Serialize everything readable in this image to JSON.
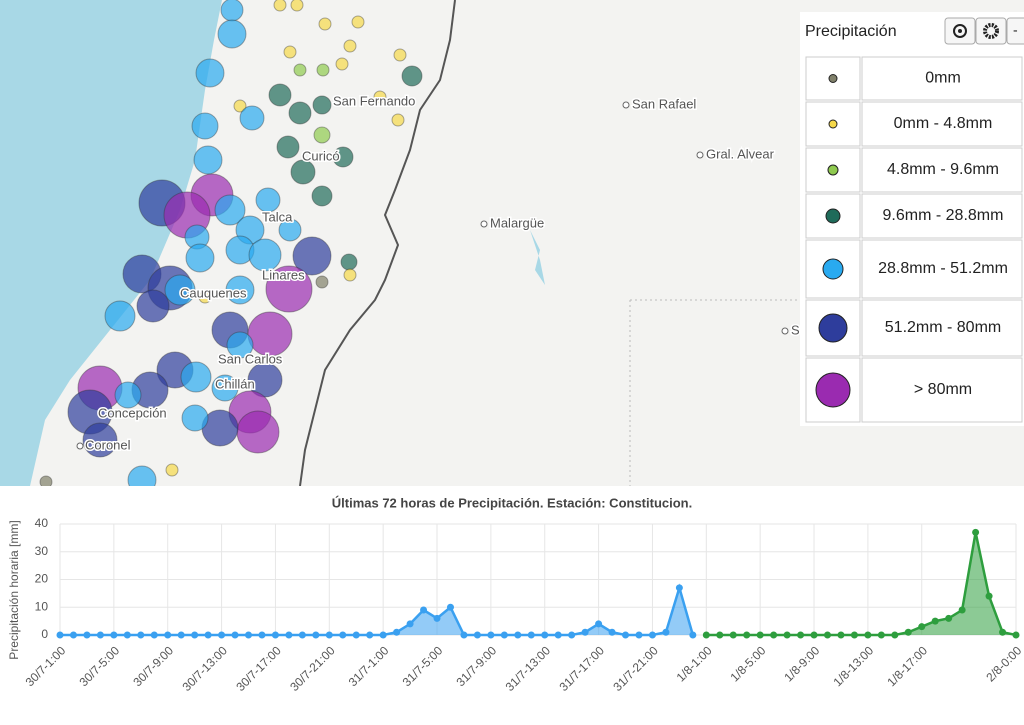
{
  "map": {
    "places": [
      "San Fernando",
      "Curicó",
      "Talca",
      "Linares",
      "Cauquenes",
      "San Carlos",
      "Chillán",
      "Concepción",
      "Coronel",
      "San Rafael",
      "Gral. Alvear",
      "Malargüe",
      "S"
    ],
    "legend": {
      "title": "Precipitación",
      "reset_button": "-",
      "items": [
        {
          "label": "0mm",
          "color": "#80806a"
        },
        {
          "label": "0mm - 4.8mm",
          "color": "#f5d84a"
        },
        {
          "label": "4.8mm - 9.6mm",
          "color": "#8fca4f"
        },
        {
          "label": "9.6mm - 28.8mm",
          "color": "#1f6b5a"
        },
        {
          "label": "28.8mm - 51.2mm",
          "color": "#29aaf0"
        },
        {
          "label": "51.2mm - 80mm",
          "color": "#2e3d9c"
        },
        {
          "label": "> 80mm",
          "color": "#9a2bb0"
        }
      ]
    }
  },
  "chart_data": {
    "type": "line",
    "title": "Últimas 72 horas de Precipitación. Estación: Constitucion.",
    "y_label": "Precipitación horaria [mm]",
    "categories": [
      "30/7-1:00",
      null,
      null,
      null,
      "30/7-5:00",
      null,
      null,
      null,
      "30/7-9:00",
      null,
      null,
      null,
      "30/7-13:00",
      null,
      null,
      null,
      "30/7-17:00",
      null,
      null,
      null,
      "30/7-21:00",
      null,
      null,
      null,
      "31/7-1:00",
      null,
      null,
      null,
      "31/7-5:00",
      null,
      null,
      null,
      "31/7-9:00",
      null,
      null,
      null,
      "31/7-13:00",
      null,
      null,
      null,
      "31/7-17:00",
      null,
      null,
      null,
      "31/7-21:00",
      null,
      null,
      null,
      "1/8-1:00",
      null,
      null,
      null,
      "1/8-5:00",
      null,
      null,
      null,
      "1/8-9:00",
      null,
      null,
      null,
      "1/8-13:00",
      null,
      null,
      null,
      "1/8-17:00",
      null,
      null,
      null,
      null,
      null,
      null,
      "2/8-0:00"
    ],
    "series": [
      {
        "color": "#3aa0f0",
        "values": [
          0,
          0,
          0,
          0,
          0,
          0,
          0,
          0,
          0,
          0,
          0,
          0,
          0,
          0,
          0,
          0,
          0,
          0,
          0,
          0,
          0,
          0,
          0,
          0,
          0,
          1,
          4,
          9,
          6,
          10,
          0,
          0,
          0,
          0,
          0,
          0,
          0,
          0,
          0,
          1,
          4,
          1,
          0,
          0,
          0,
          1,
          17,
          0,
          null,
          null,
          null,
          null,
          null,
          null,
          null,
          null,
          null,
          null,
          null,
          null,
          null,
          null,
          null,
          null,
          null,
          null,
          null,
          null,
          null,
          null,
          null,
          null
        ]
      },
      {
        "color": "#2e9e3e",
        "values": [
          null,
          null,
          null,
          null,
          null,
          null,
          null,
          null,
          null,
          null,
          null,
          null,
          null,
          null,
          null,
          null,
          null,
          null,
          null,
          null,
          null,
          null,
          null,
          null,
          null,
          null,
          null,
          null,
          null,
          null,
          null,
          null,
          null,
          null,
          null,
          null,
          null,
          null,
          null,
          null,
          null,
          null,
          null,
          null,
          null,
          null,
          null,
          null,
          0,
          0,
          0,
          0,
          0,
          0,
          0,
          0,
          0,
          0,
          0,
          0,
          0,
          0,
          0,
          1,
          3,
          5,
          6,
          9,
          37,
          14,
          1,
          0
        ]
      }
    ],
    "ylim": [
      0,
      40
    ],
    "yticks": [
      0,
      10,
      20,
      30,
      40
    ],
    "grid": true
  }
}
